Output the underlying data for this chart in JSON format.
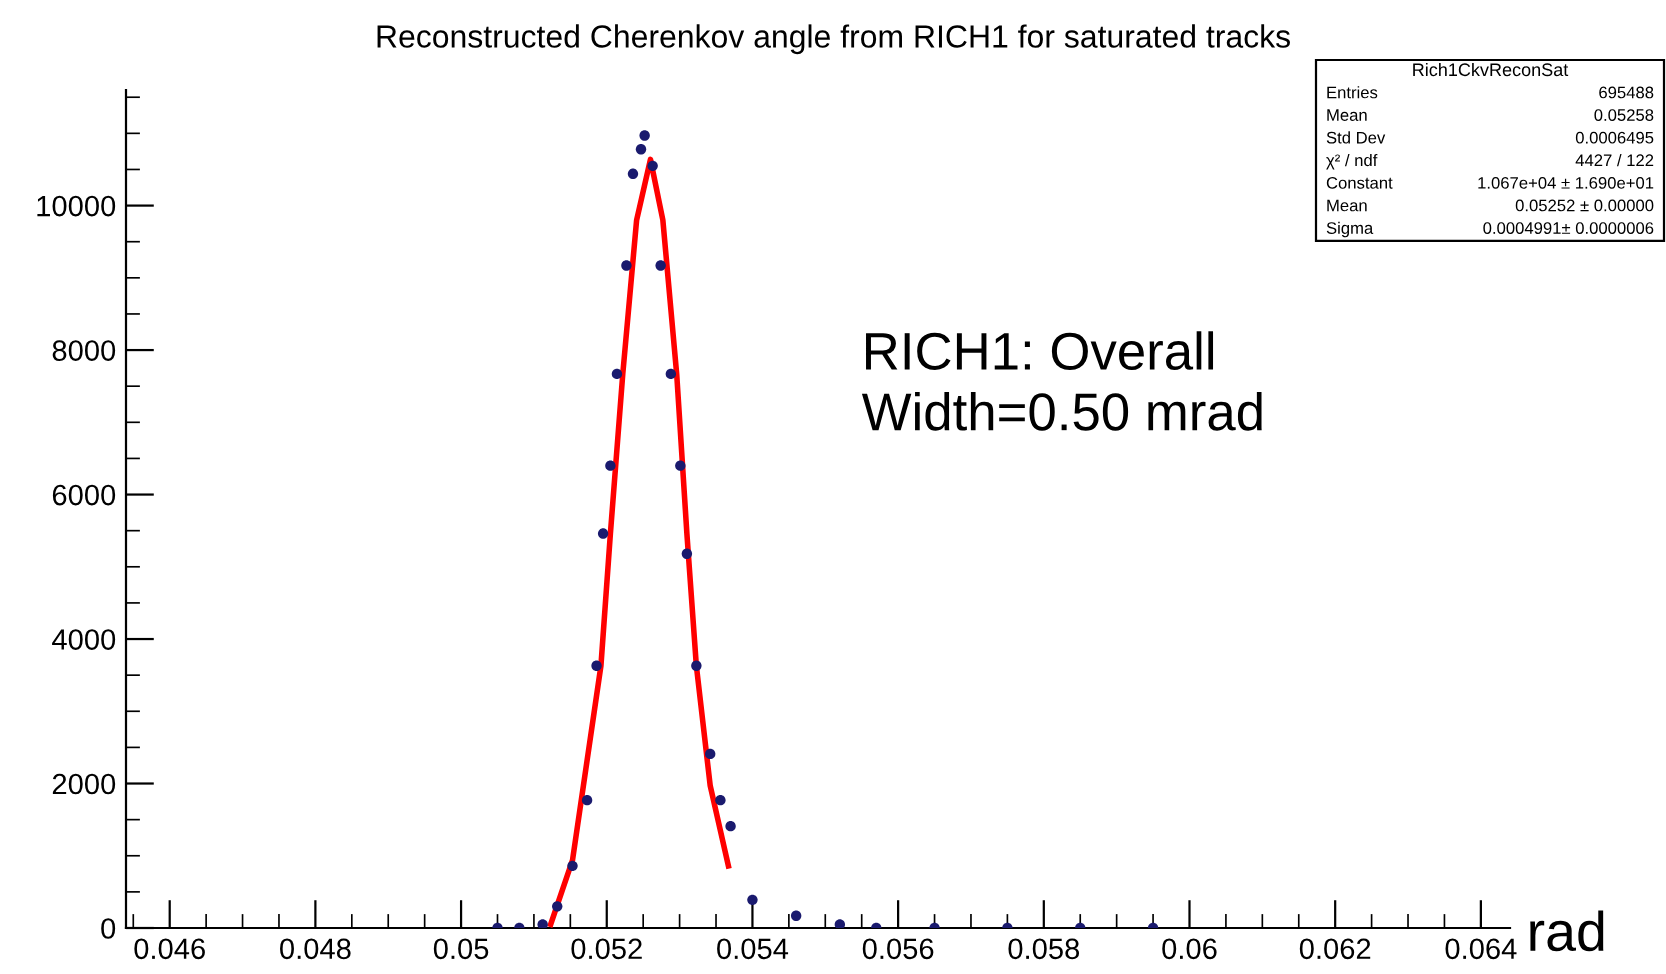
{
  "chart_data": {
    "type": "scatter",
    "title": "Reconstructed Cherenkov angle from RICH1 for saturated tracks",
    "xlabel": "rad",
    "xlim": [
      0.0454,
      0.0644
    ],
    "ylim": [
      0,
      11600
    ],
    "xticks": [
      0.046,
      0.048,
      0.05,
      0.052,
      0.054,
      0.056,
      0.058,
      0.06,
      0.062,
      0.064
    ],
    "yticks": [
      0,
      2000,
      4000,
      6000,
      8000,
      10000
    ],
    "grid": false,
    "legend": false,
    "series": [
      {
        "color": "#1a1a6e",
        "marker": "circle",
        "x": [
          0.0505,
          0.0508,
          0.05112,
          0.05132,
          0.05153,
          0.05173,
          0.05186,
          0.05195,
          0.05205,
          0.05214,
          0.05227,
          0.05236,
          0.05247,
          0.05252,
          0.05263,
          0.05274,
          0.05288,
          0.05301,
          0.0531,
          0.05323,
          0.05342,
          0.05356,
          0.0537,
          0.054,
          0.0546,
          0.0552,
          0.0557,
          0.0565,
          0.0575,
          0.0585,
          0.0595
        ],
        "values": [
          0,
          0,
          50,
          300,
          860,
          1770,
          3630,
          5460,
          6400,
          7670,
          9170,
          10440,
          10780,
          10970,
          10550,
          9170,
          7670,
          6400,
          5180,
          3630,
          2410,
          1770,
          1410,
          390,
          170,
          50,
          0,
          0,
          0,
          0,
          0
        ]
      },
      {
        "type": "line",
        "color": "#ff0000",
        "line_style": "solid",
        "x": [
          0.05123,
          0.05153,
          0.05192,
          0.05205,
          0.05222,
          0.05241,
          0.0526,
          0.05277,
          0.05296,
          0.0531,
          0.05323,
          0.05342,
          0.05367
        ],
        "values": [
          50,
          940,
          3630,
          5460,
          7670,
          9800,
          10640,
          9800,
          7670,
          5460,
          3630,
          1970,
          860
        ]
      }
    ],
    "annotations": [
      "RICH1: Overall\nWidth=0.50 mrad",
      "Rich1CkvReconSat",
      "Entries",
      "695488",
      "Mean",
      "0.05258",
      "Std Dev",
      "0.0006495",
      "χ² / ndf",
      "4427 / 122",
      "Constant",
      "1.067e+04 ± 1.690e+01",
      "Mean",
      "0.05252 ± 0.00000",
      "Sigma",
      "0.0004991± 0.0000006"
    ]
  }
}
